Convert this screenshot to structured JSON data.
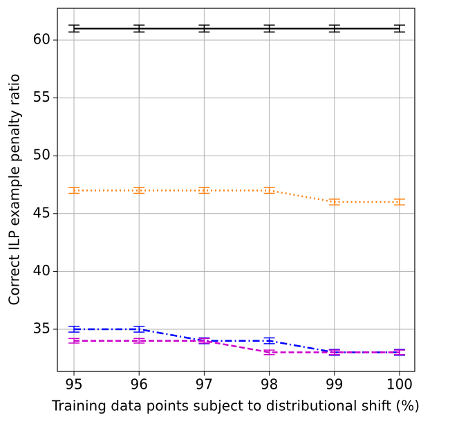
{
  "chart_data": {
    "type": "line",
    "x_label": "Training data points subject to distributional shift (%)",
    "y_label": "Correct ILP example penalty ratio",
    "x": [
      95,
      96,
      97,
      98,
      99,
      100
    ],
    "series": [
      {
        "color": "#000000",
        "dash": "solid",
        "values": [
          61,
          61,
          61,
          61,
          61,
          61
        ],
        "errors": [
          0.3,
          0.3,
          0.3,
          0.3,
          0.3,
          0.3
        ]
      },
      {
        "color": "#ff7f0e",
        "dash": "dotted",
        "values": [
          47,
          47,
          47,
          47,
          46,
          46
        ],
        "errors": [
          0.25,
          0.25,
          0.25,
          0.25,
          0.25,
          0.25
        ]
      },
      {
        "color": "#0000ff",
        "dash": "dashdot",
        "values": [
          35,
          35,
          34,
          34,
          33,
          33
        ],
        "errors": [
          0.25,
          0.25,
          0.25,
          0.25,
          0.25,
          0.25
        ]
      },
      {
        "color": "#cc00cc",
        "dash": "dashed",
        "values": [
          34,
          34,
          34,
          33,
          33,
          33
        ],
        "errors": [
          0.2,
          0.2,
          0.2,
          0.2,
          0.2,
          0.2
        ]
      }
    ],
    "xlim": [
      94.745,
      100.234
    ],
    "xticks": [
      95,
      96,
      97,
      98,
      99,
      100
    ],
    "ylim": [
      31.35,
      62.75
    ],
    "yticks": [
      35,
      40,
      45,
      50,
      55,
      60
    ],
    "grid": true
  }
}
